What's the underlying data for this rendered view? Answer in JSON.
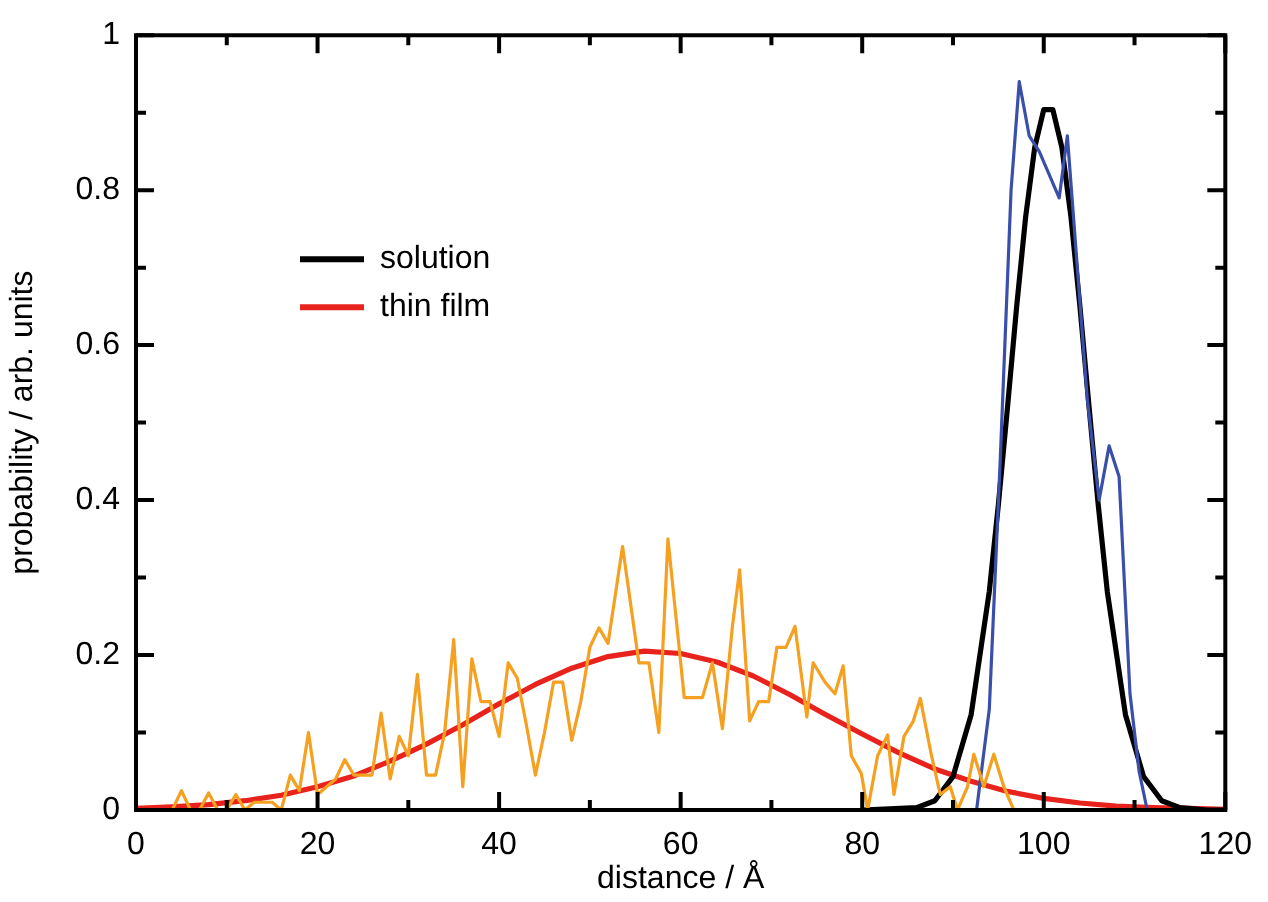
{
  "chart_data": {
    "type": "line",
    "xlabel": "distance / Å",
    "ylabel": "probability / arb. units",
    "xlim": [
      0,
      120
    ],
    "ylim": [
      0,
      1
    ],
    "xticks": [
      0,
      {
        "value": 10,
        "label": null
      },
      20,
      {
        "value": 30,
        "label": null
      },
      40,
      {
        "value": 50,
        "label": null
      },
      60,
      {
        "value": 70,
        "label": null
      },
      80,
      {
        "value": 90,
        "label": null
      },
      100,
      {
        "value": 110,
        "label": null
      },
      120
    ],
    "yticks": [
      0,
      {
        "value": 0.1,
        "label": null
      },
      0.2,
      {
        "value": 0.3,
        "label": null
      },
      0.4,
      {
        "value": 0.5,
        "label": null
      },
      0.6,
      {
        "value": 0.7,
        "label": null
      },
      0.8,
      {
        "value": 0.9,
        "label": null
      },
      1
    ],
    "grid": false,
    "legend": "top left",
    "marker": "none",
    "line_style": "solid",
    "series": [
      {
        "color": "#f5a020",
        "x": [
          3,
          4,
          5,
          6,
          7,
          8,
          9,
          10,
          11,
          12,
          13,
          14,
          15,
          16,
          17,
          18,
          19,
          20,
          21,
          22,
          23,
          24,
          25,
          26,
          27,
          28,
          29,
          30,
          31,
          32,
          33,
          34,
          35,
          36,
          37,
          38,
          39,
          40,
          41,
          42,
          43,
          44,
          45,
          46,
          47,
          48,
          49,
          50,
          51,
          52,
          53.6,
          55.4,
          56.5,
          57.6,
          58.6,
          60.4,
          62.4,
          63.5,
          64.6,
          65.7,
          66.5,
          67.6,
          68.6,
          69.7,
          70.6,
          71.6,
          72.6,
          73.9,
          74.6,
          75.9,
          77,
          77.9,
          78.8,
          79.9,
          80.6,
          81.7,
          82.8,
          83.5,
          84.6,
          85.6,
          86.4,
          87.6,
          88.6,
          89.7,
          90.5,
          91.6,
          92.3,
          93.4,
          94.5,
          95.6,
          96.7,
          98
        ],
        "values": [
          0,
          0,
          0.025,
          0,
          0,
          0.022,
          0,
          0,
          0.02,
          0,
          0.01,
          0.01,
          0.01,
          0,
          0.045,
          0.025,
          0.1,
          0.02,
          0.03,
          0.04,
          0.065,
          0.045,
          0.045,
          0.045,
          0.125,
          0.04,
          0.095,
          0.07,
          0.175,
          0.045,
          0.045,
          0.1,
          0.22,
          0.03,
          0.195,
          0.14,
          0.14,
          0.095,
          0.19,
          0.17,
          0.11,
          0.045,
          0.1,
          0.165,
          0.165,
          0.09,
          0.14,
          0.21,
          0.235,
          0.215,
          0.34,
          0.19,
          0.19,
          0.1,
          0.35,
          0.145,
          0.145,
          0.19,
          0.105,
          0.237,
          0.31,
          0.115,
          0.14,
          0.14,
          0.21,
          0.21,
          0.237,
          0.12,
          0.19,
          0.165,
          0.15,
          0.186,
          0.07,
          0.047,
          0,
          0.07,
          0.097,
          0.02,
          0.095,
          0.114,
          0.144,
          0.072,
          0.02,
          0.03,
          0,
          0.03,
          0.072,
          0.03,
          0.072,
          0.03,
          0,
          0
        ]
      },
      {
        "color": "#3a4faa",
        "x": [
          92.6,
          94,
          95.2,
          96.4,
          97.3,
          98.4,
          99.5,
          100.6,
          101.7,
          102.6,
          103.7,
          104.8,
          106.1,
          107.2,
          108.3,
          109.5,
          110.5,
          111.4
        ],
        "values": [
          0,
          0.13,
          0.45,
          0.8,
          0.94,
          0.87,
          0.85,
          0.82,
          0.79,
          0.87,
          0.7,
          0.53,
          0.4,
          0.47,
          0.43,
          0.15,
          0.05,
          0
        ]
      },
      {
        "name": "solution",
        "color": "#000000",
        "x": [
          80,
          86,
          88,
          90,
          92,
          94,
          95,
          96,
          97,
          98,
          99,
          100,
          101,
          102,
          103,
          104,
          105,
          106,
          107,
          109,
          111,
          113,
          115,
          118,
          120
        ],
        "values": [
          0,
          0.003,
          0.012,
          0.043,
          0.123,
          0.282,
          0.394,
          0.519,
          0.648,
          0.765,
          0.855,
          0.904,
          0.904,
          0.855,
          0.765,
          0.648,
          0.519,
          0.394,
          0.282,
          0.123,
          0.043,
          0.012,
          0.003,
          0,
          0
        ]
      },
      {
        "name": "thin film",
        "color": "#e8221c",
        "x": [
          0,
          4,
          8,
          12,
          16,
          20,
          24,
          28,
          32,
          36,
          40,
          44,
          48,
          52,
          56,
          60,
          64,
          68,
          72,
          76,
          80,
          84,
          88,
          92,
          96,
          100,
          104,
          108,
          112,
          116,
          120
        ],
        "values": [
          0.002,
          0.004,
          0.007,
          0.012,
          0.019,
          0.03,
          0.044,
          0.063,
          0.085,
          0.11,
          0.137,
          0.162,
          0.183,
          0.198,
          0.205,
          0.202,
          0.191,
          0.173,
          0.149,
          0.123,
          0.098,
          0.074,
          0.053,
          0.037,
          0.024,
          0.015,
          0.009,
          0.005,
          0.003,
          0.002,
          0.001
        ]
      }
    ]
  }
}
